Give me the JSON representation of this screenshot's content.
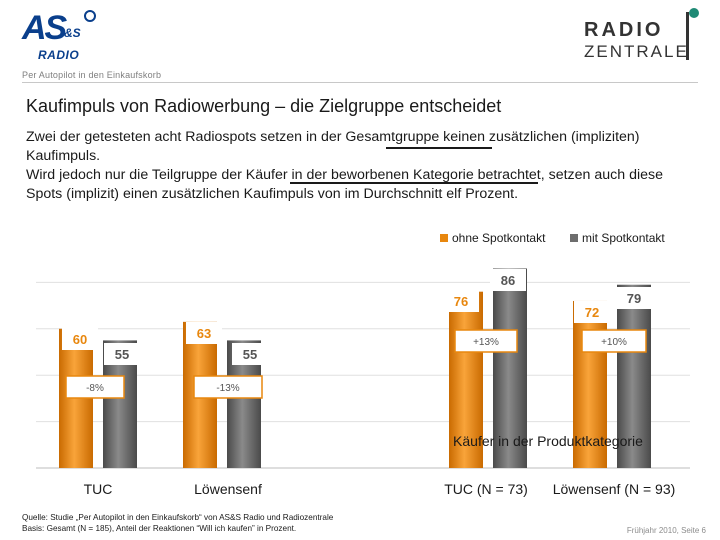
{
  "header": {
    "logo_left_main": "AS",
    "logo_left_amp": "&S",
    "logo_left_sub": "RADIO",
    "tagline": "Per Autopilot in den Einkaufskorb",
    "logo_right_line1": "RADIO",
    "logo_right_line2": "ZENTRALE"
  },
  "slide": {
    "title": "Kaufimpuls von Radiowerbung – die Zielgruppe entscheidet",
    "para1": "Zwei der getesteten acht Radiospots setzen in der Gesamtgruppe keinen zusätzlichen (impliziten) Kaufimpuls.",
    "para2": "Wird jedoch nur die Teilgruppe der Käufer in der beworbenen Kategorie betrachtet, setzen auch diese Spots (implizit) einen zusätzlichen Kaufimpuls von im Durchschnitt elf Prozent."
  },
  "chart_data": {
    "type": "bar",
    "categories": [
      "TUC",
      "Löwensenf",
      "TUC (N = 73)",
      "Löwensenf (N = 93)"
    ],
    "series": [
      {
        "name": "ohne Spotkontakt",
        "values": [
          60,
          63,
          76,
          72
        ],
        "color": "#e8870e"
      },
      {
        "name": "mit Spotkontakt",
        "values": [
          55,
          55,
          86,
          79
        ],
        "color": "#6d6d6d"
      }
    ],
    "changes": [
      "-8%",
      "-13%",
      "+13%",
      "+10%"
    ],
    "group_label": "Käufer in der Produktkategorie",
    "ylim": [
      0,
      100
    ],
    "grid": true,
    "legend_position": "top-right"
  },
  "footer": {
    "source_line1": "Quelle: Studie „Per Autopilot in den Einkaufskorb“ von AS&S Radio und Radiozentrale",
    "source_line2": "Basis: Gesamt (N = 185), Anteil der Reaktionen “Will ich kaufen” in Prozent.",
    "page": "Frühjahr 2010, Seite 6"
  }
}
